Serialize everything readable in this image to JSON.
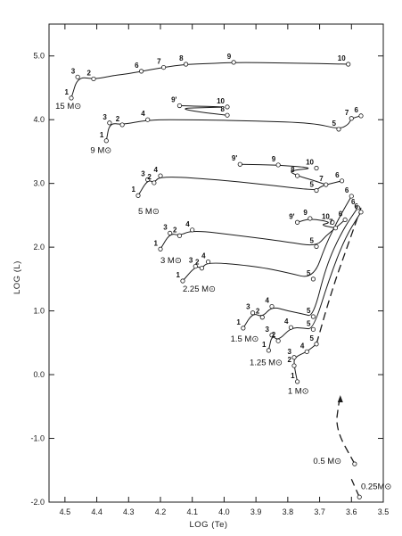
{
  "chart_data": {
    "type": "line",
    "xlabel": "LOG (Te)",
    "ylabel": "LOG (L)",
    "xlim": [
      4.55,
      3.5
    ],
    "ylim": [
      -2.0,
      5.5
    ],
    "x_ticks": [
      "4.5",
      "4.4",
      "4.3",
      "4.2",
      "4.1",
      "4.0",
      "3.9",
      "3.8",
      "3.7",
      "3.6",
      "3.5"
    ],
    "y_ticks": [
      "5.0",
      "4.0",
      "3.0",
      "2.0",
      "1.0",
      "0.0",
      "-1.0",
      "-2.0"
    ],
    "series": [
      {
        "name": "15 M⊙",
        "label": [
          4.53,
          4.17
        ],
        "points": [
          {
            "x": 4.48,
            "y": 4.34,
            "label": "1"
          },
          {
            "x": 4.46,
            "y": 4.67,
            "label": "3"
          },
          {
            "x": 4.41,
            "y": 4.64,
            "label": "2"
          },
          {
            "x": 4.26,
            "y": 4.76,
            "label": "6"
          },
          {
            "x": 4.19,
            "y": 4.82,
            "label": "7"
          },
          {
            "x": 4.12,
            "y": 4.87,
            "label": "8"
          },
          {
            "x": 3.97,
            "y": 4.9,
            "label": "9"
          },
          {
            "x": 3.61,
            "y": 4.87,
            "label": "10"
          }
        ],
        "path": [
          [
            4.48,
            4.34
          ],
          [
            4.46,
            4.67
          ],
          [
            4.41,
            4.64
          ],
          [
            4.38,
            4.66
          ],
          [
            4.34,
            4.7
          ],
          [
            4.3,
            4.72
          ],
          [
            4.26,
            4.76
          ],
          [
            4.19,
            4.82
          ],
          [
            4.12,
            4.87
          ],
          [
            4.05,
            4.88
          ],
          [
            3.97,
            4.9
          ],
          [
            3.8,
            4.89
          ],
          [
            3.61,
            4.87
          ]
        ]
      },
      {
        "name": "15 M⊙ (loop)",
        "points": [
          {
            "x": 4.14,
            "y": 4.22,
            "label": "9'"
          },
          {
            "x": 3.99,
            "y": 4.2,
            "label": "10"
          },
          {
            "x": 3.99,
            "y": 4.07,
            "label": "8"
          }
        ],
        "path": [
          [
            4.14,
            4.22
          ],
          [
            4.08,
            4.21
          ],
          [
            3.99,
            4.2
          ],
          [
            4.05,
            4.19
          ],
          [
            4.14,
            4.18
          ],
          [
            4.08,
            4.12
          ],
          [
            3.99,
            4.07
          ]
        ]
      },
      {
        "name": "9 M⊙",
        "label": [
          4.42,
          3.48
        ],
        "points": [
          {
            "x": 4.37,
            "y": 3.67,
            "label": "1"
          },
          {
            "x": 4.36,
            "y": 3.95,
            "label": "3"
          },
          {
            "x": 4.32,
            "y": 3.92,
            "label": "2"
          },
          {
            "x": 4.24,
            "y": 4.0,
            "label": "4"
          },
          {
            "x": 3.64,
            "y": 3.85,
            "label": "5"
          },
          {
            "x": 3.6,
            "y": 4.02,
            "label": "7"
          },
          {
            "x": 3.57,
            "y": 4.06,
            "label": "6"
          }
        ],
        "path": [
          [
            4.37,
            3.67
          ],
          [
            4.36,
            3.95
          ],
          [
            4.32,
            3.92
          ],
          [
            4.24,
            4.0
          ],
          [
            4.1,
            4.0
          ],
          [
            3.9,
            3.98
          ],
          [
            3.72,
            3.95
          ],
          [
            3.64,
            3.85
          ],
          [
            3.61,
            3.92
          ],
          [
            3.6,
            4.02
          ],
          [
            3.57,
            4.06
          ]
        ]
      },
      {
        "name": "5 M⊙",
        "label": [
          4.27,
          2.52
        ],
        "points": [
          {
            "x": 4.27,
            "y": 2.81,
            "label": "1"
          },
          {
            "x": 4.24,
            "y": 3.06,
            "label": "3"
          },
          {
            "x": 4.22,
            "y": 3.01,
            "label": "2"
          },
          {
            "x": 4.2,
            "y": 3.12,
            "label": "4"
          },
          {
            "x": 3.71,
            "y": 2.89,
            "label": "5"
          },
          {
            "x": 3.68,
            "y": 2.98,
            "label": "7"
          },
          {
            "x": 3.63,
            "y": 3.04,
            "label": "6"
          }
        ],
        "path": [
          [
            4.27,
            2.81
          ],
          [
            4.24,
            3.06
          ],
          [
            4.22,
            3.01
          ],
          [
            4.2,
            3.12
          ],
          [
            4.0,
            3.05
          ],
          [
            3.85,
            2.97
          ],
          [
            3.71,
            2.89
          ],
          [
            3.7,
            2.94
          ],
          [
            3.68,
            2.98
          ],
          [
            3.63,
            3.04
          ]
        ]
      },
      {
        "name": "5 M⊙ (loop)",
        "points": [
          {
            "x": 3.95,
            "y": 3.3,
            "label": "9'"
          },
          {
            "x": 3.83,
            "y": 3.29,
            "label": "9"
          },
          {
            "x": 3.71,
            "y": 3.24,
            "label": "10"
          },
          {
            "x": 3.77,
            "y": 3.12,
            "label": "8"
          }
        ],
        "path": [
          [
            3.95,
            3.3
          ],
          [
            3.83,
            3.29
          ],
          [
            3.71,
            3.24
          ],
          [
            3.8,
            3.2
          ],
          [
            3.77,
            3.12
          ],
          [
            3.72,
            3.05
          ],
          [
            3.68,
            2.98
          ]
        ]
      },
      {
        "name": "3 M⊙",
        "label": [
          4.2,
          1.75
        ],
        "points": [
          {
            "x": 4.2,
            "y": 1.97,
            "label": "1"
          },
          {
            "x": 4.17,
            "y": 2.22,
            "label": "3"
          },
          {
            "x": 4.14,
            "y": 2.18,
            "label": "2"
          },
          {
            "x": 4.1,
            "y": 2.27,
            "label": "4"
          },
          {
            "x": 3.71,
            "y": 2.01,
            "label": "5"
          },
          {
            "x": 3.65,
            "y": 2.3,
            "label": "7"
          },
          {
            "x": 3.62,
            "y": 2.43,
            "label": "6"
          }
        ],
        "path": [
          [
            4.2,
            1.97
          ],
          [
            4.17,
            2.22
          ],
          [
            4.14,
            2.18
          ],
          [
            4.1,
            2.27
          ],
          [
            3.95,
            2.18
          ],
          [
            3.8,
            2.08
          ],
          [
            3.71,
            2.01
          ],
          [
            3.68,
            2.18
          ],
          [
            3.65,
            2.3
          ],
          [
            3.62,
            2.43
          ]
        ]
      },
      {
        "name": "3 M⊙ (loop)",
        "points": [
          {
            "x": 3.77,
            "y": 2.39,
            "label": "9'"
          },
          {
            "x": 3.73,
            "y": 2.45,
            "label": "9"
          },
          {
            "x": 3.66,
            "y": 2.39,
            "label": "10"
          }
        ],
        "path": [
          [
            3.77,
            2.39
          ],
          [
            3.73,
            2.45
          ],
          [
            3.66,
            2.39
          ],
          [
            3.7,
            2.35
          ],
          [
            3.65,
            2.3
          ]
        ]
      },
      {
        "name": "2.25 M⊙",
        "label": [
          4.13,
          1.3
        ],
        "points": [
          {
            "x": 4.13,
            "y": 1.47,
            "label": "1"
          },
          {
            "x": 4.09,
            "y": 1.7,
            "label": "3"
          },
          {
            "x": 4.07,
            "y": 1.67,
            "label": "2"
          },
          {
            "x": 4.05,
            "y": 1.77,
            "label": "4"
          },
          {
            "x": 3.72,
            "y": 1.5,
            "label": "5"
          },
          {
            "x": 3.6,
            "y": 2.8,
            "label": "6"
          }
        ],
        "path": [
          [
            4.13,
            1.47
          ],
          [
            4.09,
            1.7
          ],
          [
            4.07,
            1.67
          ],
          [
            4.05,
            1.77
          ],
          [
            3.9,
            1.7
          ],
          [
            3.8,
            1.6
          ],
          [
            3.72,
            1.5
          ],
          [
            3.68,
            2.05
          ],
          [
            3.64,
            2.45
          ],
          [
            3.6,
            2.8
          ]
        ]
      },
      {
        "name": "1.5 M⊙",
        "label": [
          3.98,
          0.52
        ],
        "points": [
          {
            "x": 3.94,
            "y": 0.73,
            "label": "1"
          },
          {
            "x": 3.91,
            "y": 0.97,
            "label": "3"
          },
          {
            "x": 3.88,
            "y": 0.9,
            "label": "2"
          },
          {
            "x": 3.85,
            "y": 1.07,
            "label": "4"
          },
          {
            "x": 3.72,
            "y": 0.91,
            "label": "5"
          },
          {
            "x": 3.58,
            "y": 2.62,
            "label": "6"
          }
        ],
        "path": [
          [
            3.94,
            0.73
          ],
          [
            3.91,
            0.97
          ],
          [
            3.88,
            0.9
          ],
          [
            3.85,
            1.07
          ],
          [
            3.8,
            1.0
          ],
          [
            3.75,
            0.95
          ],
          [
            3.72,
            0.91
          ],
          [
            3.68,
            1.7
          ],
          [
            3.63,
            2.25
          ],
          [
            3.58,
            2.62
          ]
        ]
      },
      {
        "name": "1.25 M⊙",
        "label": [
          3.92,
          0.15
        ],
        "points": [
          {
            "x": 3.86,
            "y": 0.38,
            "label": "1"
          },
          {
            "x": 3.85,
            "y": 0.62,
            "label": "3"
          },
          {
            "x": 3.83,
            "y": 0.53,
            "label": "2"
          },
          {
            "x": 3.79,
            "y": 0.74,
            "label": "4"
          },
          {
            "x": 3.72,
            "y": 0.71,
            "label": "5"
          },
          {
            "x": 3.57,
            "y": 2.55,
            "label": "6"
          }
        ],
        "path": [
          [
            3.86,
            0.38
          ],
          [
            3.85,
            0.62
          ],
          [
            3.83,
            0.53
          ],
          [
            3.79,
            0.74
          ],
          [
            3.75,
            0.73
          ],
          [
            3.72,
            0.71
          ],
          [
            3.67,
            1.5
          ],
          [
            3.62,
            2.15
          ],
          [
            3.57,
            2.55
          ]
        ]
      },
      {
        "name": "1 M⊙",
        "label": [
          3.8,
          -0.3
        ],
        "points": [
          {
            "x": 3.77,
            "y": -0.11,
            "label": "1"
          },
          {
            "x": 3.78,
            "y": 0.14,
            "label": "2"
          },
          {
            "x": 3.78,
            "y": 0.27,
            "label": "3"
          },
          {
            "x": 3.74,
            "y": 0.36,
            "label": "4"
          },
          {
            "x": 3.71,
            "y": 0.48,
            "label": "5"
          }
        ],
        "path": [
          [
            3.77,
            -0.11
          ],
          [
            3.78,
            0.14
          ],
          [
            3.78,
            0.27
          ],
          [
            3.74,
            0.36
          ],
          [
            3.71,
            0.48
          ]
        ],
        "dashed_path": [
          [
            3.71,
            0.48
          ],
          [
            3.66,
            1.35
          ],
          [
            3.61,
            2.05
          ],
          [
            3.57,
            2.62
          ]
        ]
      },
      {
        "name": "0.5 M⊙",
        "label": [
          3.72,
          -1.4
        ],
        "points": [
          {
            "x": 3.59,
            "y": -1.4,
            "label": ""
          }
        ],
        "path": [],
        "dashed_path": [
          [
            3.59,
            -1.4
          ],
          [
            3.65,
            -0.85
          ],
          [
            3.64,
            -0.45
          ],
          [
            3.635,
            -0.35
          ]
        ],
        "arrow_at": [
          3.635,
          -0.35
        ]
      },
      {
        "name": "0.25M⊙",
        "label": [
          3.57,
          -1.8
        ],
        "points": [
          {
            "x": 3.575,
            "y": -1.92,
            "label": ""
          }
        ],
        "path": [],
        "dashed_path": [
          [
            3.575,
            -1.92
          ],
          [
            3.6,
            -1.64
          ]
        ]
      }
    ]
  }
}
